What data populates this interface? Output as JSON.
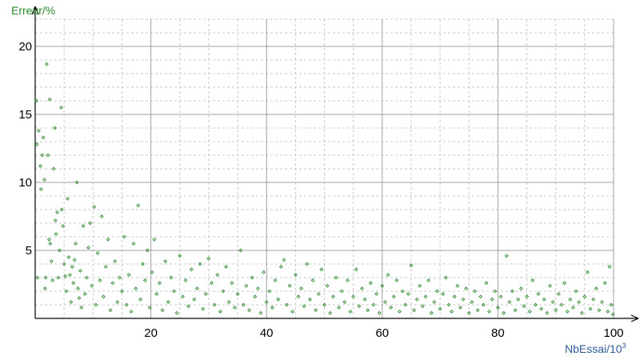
{
  "chart_data": {
    "type": "scatter",
    "title": "",
    "ylabel": "Erreur/%",
    "xlabel": "NbEssai/10",
    "xlabel_superscript": "3",
    "xlim": [
      0,
      100
    ],
    "ylim": [
      0,
      22
    ],
    "x_ticks": [
      20,
      40,
      60,
      80,
      100
    ],
    "y_ticks": [
      5,
      10,
      15,
      20
    ],
    "grid": "on",
    "legend": "none",
    "colors": {
      "points": "#2e8b2e",
      "ylabel": "#2a8a2a",
      "xlabel": "#2e5a9a",
      "grid_major": "#a0a0a0",
      "grid_minor": "#c8c8c8",
      "axis": "#000000"
    },
    "points": [
      [
        0.2,
        16.0
      ],
      [
        0.3,
        12.8
      ],
      [
        0.4,
        3.0
      ],
      [
        0.6,
        13.8
      ],
      [
        0.9,
        11.2
      ],
      [
        1.0,
        9.5
      ],
      [
        1.2,
        12.0
      ],
      [
        1.4,
        13.3
      ],
      [
        1.6,
        10.2
      ],
      [
        1.7,
        2.2
      ],
      [
        1.8,
        3.0
      ],
      [
        2.0,
        18.7
      ],
      [
        2.2,
        12.0
      ],
      [
        2.4,
        5.8
      ],
      [
        2.5,
        16.1
      ],
      [
        2.6,
        5.5
      ],
      [
        2.8,
        4.2
      ],
      [
        3.0,
        2.8
      ],
      [
        3.2,
        11.0
      ],
      [
        3.4,
        14.0
      ],
      [
        3.5,
        7.2
      ],
      [
        3.6,
        6.2
      ],
      [
        3.8,
        7.8
      ],
      [
        4.0,
        3.0
      ],
      [
        4.2,
        5.0
      ],
      [
        4.5,
        15.5
      ],
      [
        4.6,
        8.0
      ],
      [
        4.8,
        6.8
      ],
      [
        5.0,
        4.0
      ],
      [
        5.2,
        3.1
      ],
      [
        5.4,
        2.0
      ],
      [
        5.6,
        8.8
      ],
      [
        5.8,
        4.5
      ],
      [
        6.0,
        3.2
      ],
      [
        6.2,
        1.2
      ],
      [
        6.4,
        3.8
      ],
      [
        6.6,
        2.6
      ],
      [
        6.8,
        4.3
      ],
      [
        7.0,
        5.5
      ],
      [
        7.2,
        10.0
      ],
      [
        7.4,
        2.2
      ],
      [
        7.6,
        1.5
      ],
      [
        7.8,
        3.5
      ],
      [
        8.0,
        0.8
      ],
      [
        8.3,
        6.8
      ],
      [
        8.6,
        1.8
      ],
      [
        8.9,
        3.0
      ],
      [
        9.2,
        5.2
      ],
      [
        9.5,
        7.0
      ],
      [
        9.8,
        2.4
      ],
      [
        10.2,
        8.2
      ],
      [
        10.5,
        1.0
      ],
      [
        10.8,
        4.8
      ],
      [
        11.2,
        2.8
      ],
      [
        11.5,
        7.5
      ],
      [
        11.8,
        1.6
      ],
      [
        12.2,
        3.8
      ],
      [
        12.6,
        5.8
      ],
      [
        13.0,
        0.6
      ],
      [
        13.4,
        2.6
      ],
      [
        13.8,
        4.2
      ],
      [
        14.2,
        1.2
      ],
      [
        14.6,
        3.0
      ],
      [
        15.0,
        2.0
      ],
      [
        15.4,
        6.0
      ],
      [
        15.8,
        1.0
      ],
      [
        16.2,
        3.2
      ],
      [
        16.6,
        0.5
      ],
      [
        17.0,
        5.5
      ],
      [
        17.4,
        2.2
      ],
      [
        17.8,
        8.3
      ],
      [
        18.2,
        1.4
      ],
      [
        18.6,
        4.0
      ],
      [
        19.0,
        2.8
      ],
      [
        19.4,
        5.0
      ],
      [
        19.8,
        0.8
      ],
      [
        20.2,
        3.4
      ],
      [
        20.6,
        5.8
      ],
      [
        21.0,
        1.8
      ],
      [
        21.5,
        2.6
      ],
      [
        22.0,
        0.6
      ],
      [
        22.5,
        4.2
      ],
      [
        23.0,
        1.2
      ],
      [
        23.5,
        3.0
      ],
      [
        24.0,
        2.0
      ],
      [
        24.5,
        0.4
      ],
      [
        25.0,
        4.6
      ],
      [
        25.5,
        1.6
      ],
      [
        26.0,
        2.8
      ],
      [
        26.5,
        0.9
      ],
      [
        27.0,
        3.6
      ],
      [
        27.5,
        1.4
      ],
      [
        28.0,
        2.2
      ],
      [
        28.5,
        4.0
      ],
      [
        29.0,
        0.7
      ],
      [
        29.5,
        1.8
      ],
      [
        30.0,
        4.4
      ],
      [
        30.5,
        2.6
      ],
      [
        31.0,
        1.0
      ],
      [
        31.5,
        3.2
      ],
      [
        32.0,
        0.5
      ],
      [
        32.5,
        2.0
      ],
      [
        33.0,
        3.8
      ],
      [
        33.5,
        1.2
      ],
      [
        34.0,
        2.6
      ],
      [
        34.5,
        0.8
      ],
      [
        35.0,
        1.8
      ],
      [
        35.5,
        5.0
      ],
      [
        36.0,
        1.0
      ],
      [
        36.5,
        2.4
      ],
      [
        37.0,
        0.6
      ],
      [
        37.5,
        3.0
      ],
      [
        38.0,
        1.6
      ],
      [
        38.5,
        2.2
      ],
      [
        39.0,
        0.4
      ],
      [
        39.5,
        3.4
      ],
      [
        40.0,
        1.2
      ],
      [
        40.5,
        2.0
      ],
      [
        41.0,
        0.8
      ],
      [
        41.5,
        2.8
      ],
      [
        42.0,
        1.4
      ],
      [
        42.5,
        3.8
      ],
      [
        43.0,
        4.3
      ],
      [
        43.5,
        1.0
      ],
      [
        44.0,
        2.4
      ],
      [
        44.5,
        0.5
      ],
      [
        45.0,
        3.2
      ],
      [
        45.5,
        1.6
      ],
      [
        46.0,
        2.2
      ],
      [
        46.5,
        0.9
      ],
      [
        47.0,
        4.0
      ],
      [
        47.5,
        1.4
      ],
      [
        48.0,
        2.8
      ],
      [
        48.5,
        0.6
      ],
      [
        49.0,
        1.8
      ],
      [
        49.5,
        3.6
      ],
      [
        50.0,
        1.0
      ],
      [
        50.5,
        2.4
      ],
      [
        51.0,
        0.4
      ],
      [
        51.5,
        1.6
      ],
      [
        52.0,
        3.0
      ],
      [
        52.5,
        0.8
      ],
      [
        53.0,
        2.0
      ],
      [
        53.5,
        1.2
      ],
      [
        54.0,
        2.8
      ],
      [
        54.5,
        0.5
      ],
      [
        55.0,
        1.6
      ],
      [
        55.5,
        3.6
      ],
      [
        56.0,
        0.9
      ],
      [
        56.5,
        2.2
      ],
      [
        57.0,
        1.4
      ],
      [
        57.5,
        0.6
      ],
      [
        58.0,
        2.6
      ],
      [
        58.5,
        1.0
      ],
      [
        59.0,
        1.8
      ],
      [
        59.5,
        0.4
      ],
      [
        60.0,
        2.4
      ],
      [
        60.5,
        1.2
      ],
      [
        61.0,
        3.2
      ],
      [
        61.5,
        0.8
      ],
      [
        62.0,
        1.6
      ],
      [
        62.5,
        2.8
      ],
      [
        63.0,
        0.5
      ],
      [
        63.5,
        2.0
      ],
      [
        64.0,
        1.0
      ],
      [
        64.5,
        1.8
      ],
      [
        65.0,
        3.9
      ],
      [
        65.5,
        0.6
      ],
      [
        66.0,
        1.4
      ],
      [
        66.5,
        2.4
      ],
      [
        67.0,
        0.9
      ],
      [
        67.5,
        1.6
      ],
      [
        68.0,
        2.8
      ],
      [
        68.5,
        0.4
      ],
      [
        69.0,
        1.2
      ],
      [
        69.5,
        2.0
      ],
      [
        70.0,
        0.7
      ],
      [
        70.5,
        1.8
      ],
      [
        71.0,
        3.0
      ],
      [
        71.5,
        1.0
      ],
      [
        72.0,
        0.5
      ],
      [
        72.5,
        1.6
      ],
      [
        73.0,
        2.4
      ],
      [
        73.5,
        0.8
      ],
      [
        74.0,
        1.4
      ],
      [
        74.5,
        2.2
      ],
      [
        75.0,
        0.4
      ],
      [
        75.5,
        1.2
      ],
      [
        76.0,
        2.0
      ],
      [
        76.5,
        0.6
      ],
      [
        77.0,
        1.6
      ],
      [
        77.5,
        1.0
      ],
      [
        78.0,
        2.6
      ],
      [
        78.5,
        0.5
      ],
      [
        79.0,
        1.4
      ],
      [
        79.5,
        2.0
      ],
      [
        80.0,
        0.8
      ],
      [
        80.5,
        1.6
      ],
      [
        81.0,
        0.4
      ],
      [
        81.5,
        4.6
      ],
      [
        82.0,
        1.2
      ],
      [
        82.5,
        2.0
      ],
      [
        83.0,
        0.6
      ],
      [
        83.5,
        1.4
      ],
      [
        84.0,
        2.2
      ],
      [
        84.5,
        0.9
      ],
      [
        85.0,
        1.6
      ],
      [
        85.5,
        0.5
      ],
      [
        86.0,
        2.8
      ],
      [
        86.5,
        1.0
      ],
      [
        87.0,
        1.8
      ],
      [
        87.5,
        0.7
      ],
      [
        88.0,
        1.4
      ],
      [
        88.5,
        0.4
      ],
      [
        89.0,
        2.4
      ],
      [
        89.5,
        1.2
      ],
      [
        90.0,
        0.6
      ],
      [
        90.5,
        1.8
      ],
      [
        91.0,
        1.0
      ],
      [
        91.5,
        2.6
      ],
      [
        92.0,
        0.5
      ],
      [
        92.5,
        1.4
      ],
      [
        93.0,
        0.8
      ],
      [
        93.5,
        2.0
      ],
      [
        94.0,
        1.2
      ],
      [
        94.5,
        0.4
      ],
      [
        95.0,
        1.6
      ],
      [
        95.5,
        3.4
      ],
      [
        96.0,
        0.7
      ],
      [
        96.5,
        1.4
      ],
      [
        97.0,
        2.2
      ],
      [
        97.5,
        0.6
      ],
      [
        98.0,
        1.2
      ],
      [
        98.5,
        2.6
      ],
      [
        99.0,
        0.5
      ],
      [
        99.3,
        3.8
      ],
      [
        99.6,
        1.0
      ],
      [
        99.9,
        0.3
      ]
    ]
  }
}
